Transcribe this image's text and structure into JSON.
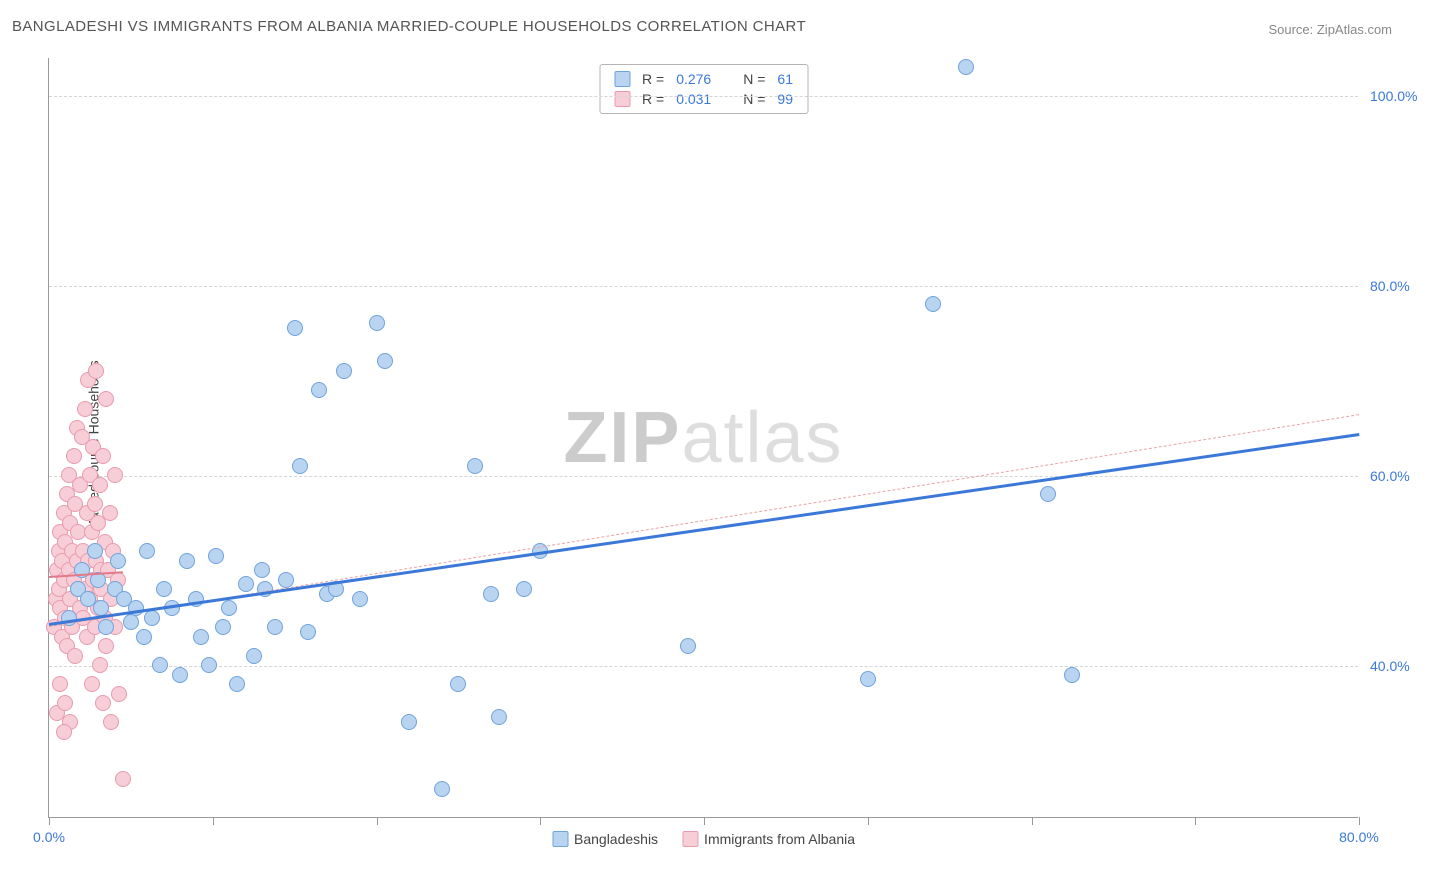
{
  "title": "BANGLADESHI VS IMMIGRANTS FROM ALBANIA MARRIED-COUPLE HOUSEHOLDS CORRELATION CHART",
  "source": "Source: ZipAtlas.com",
  "watermark": {
    "bold": "ZIP",
    "light": "atlas"
  },
  "y_axis_label": "Married-couple Households",
  "chart": {
    "type": "scatter",
    "xlim": [
      0,
      80
    ],
    "ylim": [
      24,
      104
    ],
    "x_ticks": [
      0,
      10,
      20,
      30,
      40,
      50,
      60,
      70,
      80
    ],
    "x_tick_labels": {
      "0": "0.0%",
      "80": "80.0%"
    },
    "y_ticks": [
      40,
      60,
      80,
      100
    ],
    "y_tick_labels": {
      "40": "40.0%",
      "60": "60.0%",
      "80": "80.0%",
      "100": "100.0%"
    },
    "background_color": "#ffffff",
    "grid_color": "#d5d5d5",
    "axis_color": "#999999",
    "tick_label_color": "#3b78d8",
    "marker_radius": 8,
    "marker_border_width": 1
  },
  "series": [
    {
      "name": "Bangladeshis",
      "fill_color": "#b9d4f1",
      "border_color": "#6fa3db",
      "trend": {
        "x1": 0,
        "y1": 44.5,
        "x2": 80,
        "y2": 64.5,
        "style": "solid",
        "color": "#3b78d8",
        "width": 3
      },
      "trend_ext": {
        "x1": 0,
        "y1": 44.2,
        "x2": 80,
        "y2": 66.5,
        "style": "dashed",
        "color": "#e8a4a4",
        "width": 1
      },
      "stats": {
        "R": "0.276",
        "N": "61"
      },
      "points": [
        [
          1.2,
          45
        ],
        [
          1.8,
          48
        ],
        [
          2.0,
          50
        ],
        [
          2.4,
          47
        ],
        [
          2.8,
          52
        ],
        [
          3.0,
          49
        ],
        [
          3.2,
          46
        ],
        [
          3.5,
          44
        ],
        [
          4.0,
          48
        ],
        [
          4.2,
          51
        ],
        [
          4.6,
          47
        ],
        [
          5.0,
          44.5
        ],
        [
          5.3,
          46
        ],
        [
          5.8,
          43
        ],
        [
          6.0,
          52
        ],
        [
          6.3,
          45
        ],
        [
          6.8,
          40
        ],
        [
          7.0,
          48
        ],
        [
          7.5,
          46
        ],
        [
          8.0,
          39
        ],
        [
          8.4,
          51
        ],
        [
          9.0,
          47
        ],
        [
          9.3,
          43
        ],
        [
          9.8,
          40
        ],
        [
          10.2,
          51.5
        ],
        [
          10.6,
          44
        ],
        [
          11.0,
          46
        ],
        [
          11.5,
          38
        ],
        [
          12.0,
          48.5
        ],
        [
          12.5,
          41
        ],
        [
          13.0,
          50
        ],
        [
          13.2,
          48
        ],
        [
          13.8,
          44
        ],
        [
          14.5,
          49
        ],
        [
          15.0,
          75.5
        ],
        [
          15.3,
          61
        ],
        [
          15.8,
          43.5
        ],
        [
          16.5,
          69
        ],
        [
          17.0,
          47.5
        ],
        [
          17.5,
          48
        ],
        [
          18.0,
          71
        ],
        [
          19.0,
          47
        ],
        [
          20.0,
          76
        ],
        [
          20.5,
          72
        ],
        [
          22.0,
          34
        ],
        [
          24.0,
          27
        ],
        [
          25.0,
          38
        ],
        [
          26.0,
          61
        ],
        [
          27.0,
          47.5
        ],
        [
          27.5,
          34.5
        ],
        [
          29.0,
          48
        ],
        [
          30.0,
          52
        ],
        [
          39.0,
          42
        ],
        [
          50.0,
          38.5
        ],
        [
          54.0,
          78
        ],
        [
          56.0,
          103
        ],
        [
          61.0,
          58
        ],
        [
          62.5,
          39
        ]
      ]
    },
    {
      "name": "Immigrants from Albania",
      "fill_color": "#f7cdd7",
      "border_color": "#e99bad",
      "trend": {
        "x1": 0,
        "y1": 49.5,
        "x2": 4.5,
        "y2": 50.0,
        "style": "solid",
        "color": "#e07a8b",
        "width": 2
      },
      "stats": {
        "R": "0.031",
        "N": "99"
      },
      "points": [
        [
          0.3,
          44
        ],
        [
          0.4,
          47
        ],
        [
          0.5,
          50
        ],
        [
          0.6,
          52
        ],
        [
          0.6,
          48
        ],
        [
          0.7,
          54
        ],
        [
          0.7,
          46
        ],
        [
          0.8,
          51
        ],
        [
          0.8,
          43
        ],
        [
          0.9,
          56
        ],
        [
          0.9,
          49
        ],
        [
          1.0,
          53
        ],
        [
          1.0,
          45
        ],
        [
          1.1,
          58
        ],
        [
          1.1,
          42
        ],
        [
          1.2,
          50
        ],
        [
          1.2,
          60
        ],
        [
          1.3,
          47
        ],
        [
          1.3,
          55
        ],
        [
          1.4,
          52
        ],
        [
          1.4,
          44
        ],
        [
          1.5,
          62
        ],
        [
          1.5,
          49
        ],
        [
          1.6,
          57
        ],
        [
          1.6,
          41
        ],
        [
          1.7,
          51
        ],
        [
          1.7,
          65
        ],
        [
          1.8,
          48
        ],
        [
          1.8,
          54
        ],
        [
          1.9,
          46
        ],
        [
          1.9,
          59
        ],
        [
          2.0,
          50
        ],
        [
          2.0,
          64
        ],
        [
          2.1,
          45
        ],
        [
          2.1,
          52
        ],
        [
          2.2,
          67
        ],
        [
          2.2,
          48
        ],
        [
          2.3,
          56
        ],
        [
          2.3,
          43
        ],
        [
          2.4,
          70
        ],
        [
          2.4,
          51
        ],
        [
          2.5,
          47
        ],
        [
          2.5,
          60
        ],
        [
          2.6,
          54
        ],
        [
          2.6,
          38
        ],
        [
          2.7,
          49
        ],
        [
          2.7,
          63
        ],
        [
          2.8,
          44
        ],
        [
          2.8,
          57
        ],
        [
          2.9,
          51
        ],
        [
          2.9,
          71
        ],
        [
          3.0,
          46
        ],
        [
          3.0,
          55
        ],
        [
          3.1,
          40
        ],
        [
          3.1,
          59
        ],
        [
          3.2,
          50
        ],
        [
          3.2,
          48
        ],
        [
          3.3,
          62
        ],
        [
          3.3,
          36
        ],
        [
          3.4,
          53
        ],
        [
          3.4,
          45
        ],
        [
          3.5,
          68
        ],
        [
          3.5,
          42
        ],
        [
          3.6,
          50
        ],
        [
          3.7,
          56
        ],
        [
          3.8,
          47
        ],
        [
          3.8,
          34
        ],
        [
          3.9,
          52
        ],
        [
          4.0,
          60
        ],
        [
          4.0,
          44
        ],
        [
          4.2,
          49
        ],
        [
          4.3,
          37
        ],
        [
          4.5,
          28
        ],
        [
          0.5,
          35
        ],
        [
          0.7,
          38
        ],
        [
          1.0,
          36
        ],
        [
          1.3,
          34
        ],
        [
          0.9,
          33
        ]
      ]
    }
  ],
  "legend_top_labels": {
    "R": "R =",
    "N": "N ="
  },
  "legend_bottom": [
    {
      "label": "Bangladeshis",
      "swatch_fill": "#b9d4f1",
      "swatch_border": "#6fa3db"
    },
    {
      "label": "Immigrants from Albania",
      "swatch_fill": "#f7cdd7",
      "swatch_border": "#e99bad"
    }
  ]
}
